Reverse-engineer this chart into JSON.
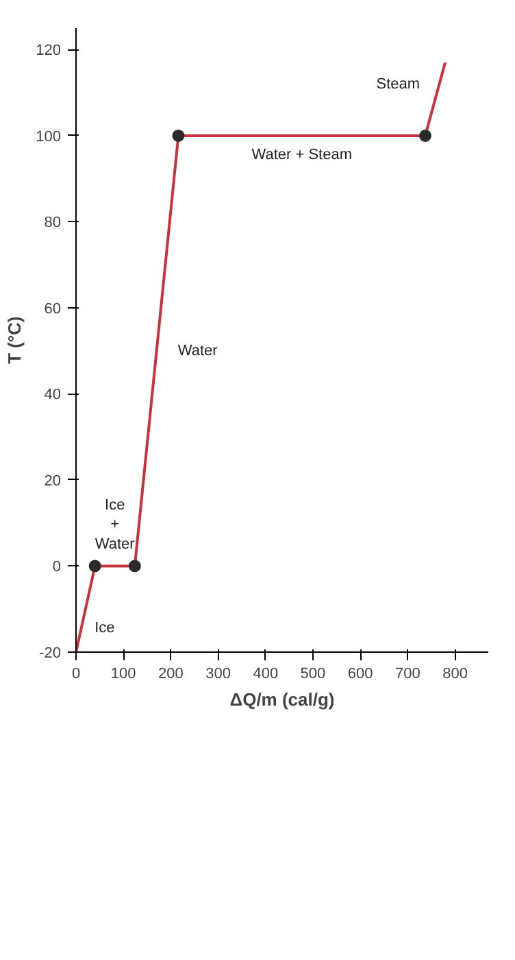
{
  "chart_data": {
    "type": "line",
    "xlabel": "ΔQ/m (cal/g)",
    "ylabel": "T (°C)",
    "series": [
      {
        "color": "#c8323c",
        "x": [
          0,
          40,
          124,
          216,
          737,
          779
        ],
        "values": [
          -20,
          0,
          0,
          100,
          100,
          117
        ]
      },
      {
        "type": "scatter",
        "color": "#2b2b2b",
        "x": [
          40,
          124,
          216,
          737
        ],
        "values": [
          0,
          0,
          100,
          100
        ]
      }
    ],
    "xlim": [
      0,
      870
    ],
    "xticks": [
      0,
      100,
      200,
      300,
      400,
      500,
      600,
      700,
      800
    ],
    "ylim": [
      -20,
      125
    ],
    "yticks": [
      -20,
      0,
      20,
      40,
      60,
      80,
      100,
      120
    ],
    "grid": false,
    "annotations": [
      "Ice",
      "Ice\n+\nWater",
      "Water",
      "Water + Steam",
      "Steam"
    ]
  }
}
